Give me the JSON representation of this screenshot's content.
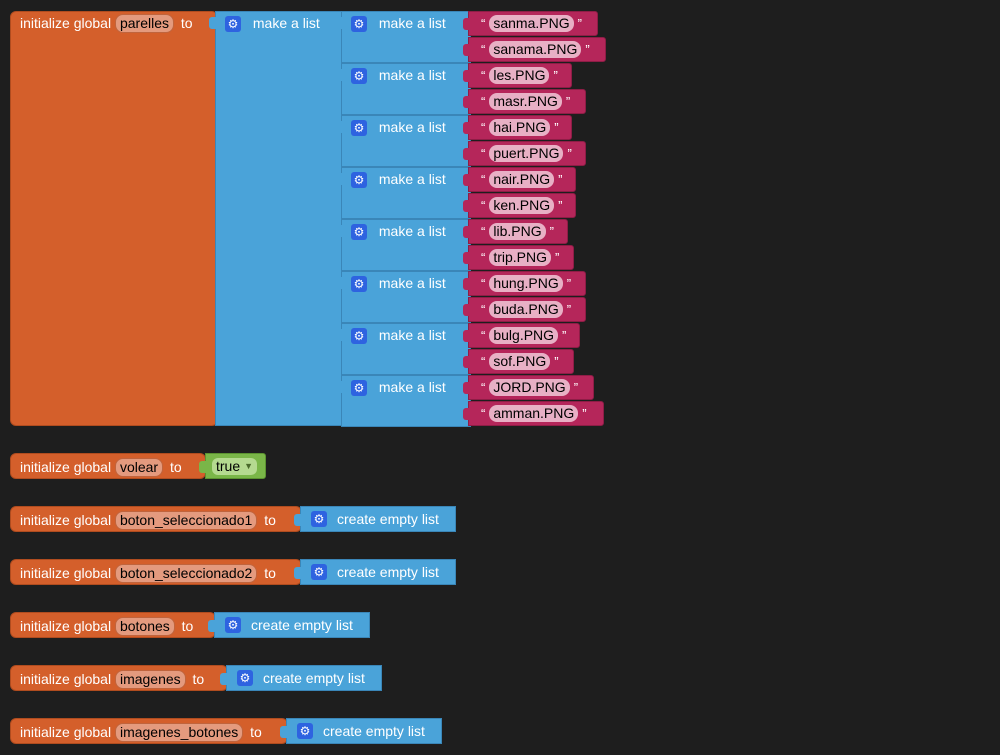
{
  "blocks": {
    "init_label": "initialize global",
    "to_label": "to",
    "make_list_label": "make a list",
    "create_empty_label": "create empty list",
    "parelles": {
      "name": "parelles",
      "pairs": [
        [
          "sanma.PNG",
          "sanama.PNG"
        ],
        [
          "les.PNG",
          "masr.PNG"
        ],
        [
          "hai.PNG",
          "puert.PNG"
        ],
        [
          "nair.PNG",
          "ken.PNG"
        ],
        [
          "lib.PNG",
          "trip.PNG"
        ],
        [
          "hung.PNG",
          "buda.PNG"
        ],
        [
          "bulg.PNG",
          "sof.PNG"
        ],
        [
          "JORD.PNG",
          "amman.PNG"
        ]
      ]
    },
    "volear": {
      "name": "volear",
      "value": "true"
    },
    "globals": [
      {
        "name": "boton_seleccionado1"
      },
      {
        "name": "boton_seleccionado2"
      },
      {
        "name": "botones"
      },
      {
        "name": "imagenes"
      },
      {
        "name": "imagenes_botones"
      }
    ]
  },
  "colors": {
    "init": "#d45f2b",
    "list": "#4aa3d9",
    "text": "#b5265a",
    "logic": "#7ab648",
    "background": "#1e1e1e"
  },
  "icons": {
    "mutator": "gear-icon"
  }
}
